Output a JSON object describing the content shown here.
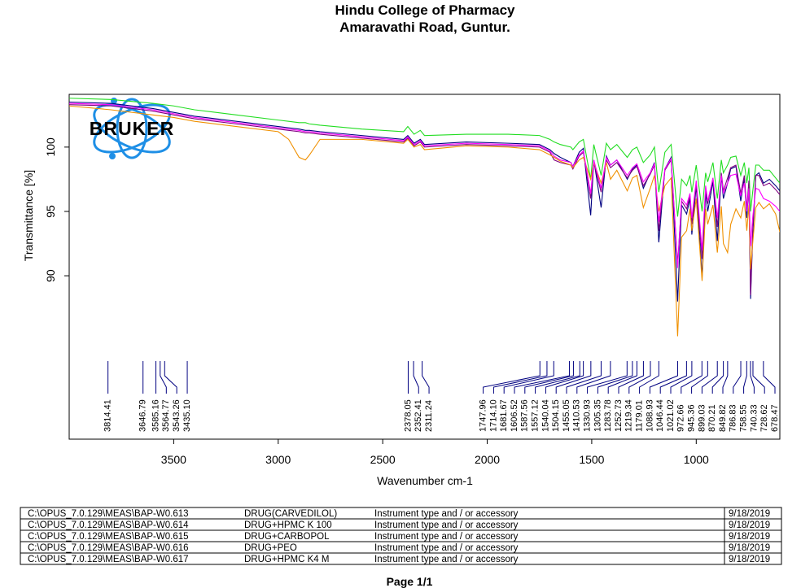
{
  "chart_data": {
    "type": "line",
    "title": "Hindu College of Pharmacy",
    "subtitle": "Amaravathi Road, Guntur.",
    "logo": "BRUKER",
    "xlabel": "Wavenumber cm-1",
    "ylabel": "Transmittance [%]",
    "footer": "Page 1/1",
    "xlim": [
      4000,
      600
    ],
    "ylim": [
      77.3,
      104.1
    ],
    "xticks": [
      3500,
      3000,
      2500,
      2000,
      1500,
      1000
    ],
    "yticks": [
      90,
      95,
      100
    ],
    "x": [
      4000,
      3800,
      3600,
      3500,
      3400,
      3200,
      3000,
      2950,
      2900,
      2870,
      2850,
      2800,
      2600,
      2400,
      2380,
      2350,
      2320,
      2300,
      2100,
      1900,
      1750,
      1700,
      1680,
      1650,
      1600,
      1590,
      1560,
      1540,
      1505,
      1490,
      1455,
      1430,
      1410,
      1380,
      1330,
      1305,
      1284,
      1253,
      1220,
      1200,
      1179,
      1150,
      1120,
      1089,
      1070,
      1046,
      1030,
      1021,
      1000,
      972,
      955,
      945,
      920,
      899,
      880,
      870,
      850,
      835,
      810,
      787,
      770,
      758,
      748,
      740,
      730,
      715,
      700,
      678,
      650,
      620,
      600
    ],
    "series": [
      {
        "name": "DRUG(CARVEDILOL)",
        "color": "#000080",
        "file": "C:\\OPUS_7.0.129\\MEAS\\BAP-W0.613",
        "accessory": "Instrument type and / or accessory",
        "date": "9/18/2019",
        "values": [
          103.5,
          103.4,
          103.0,
          102.7,
          102.4,
          102.0,
          101.6,
          101.5,
          101.4,
          101.3,
          101.3,
          101.2,
          100.9,
          100.6,
          100.9,
          100.3,
          100.6,
          100.2,
          100.4,
          100.3,
          100.2,
          99.8,
          99.5,
          99.2,
          98.8,
          98.5,
          99.6,
          99.9,
          94.7,
          99.0,
          95.3,
          99.3,
          98.6,
          99.0,
          97.5,
          98.3,
          98.6,
          96.8,
          98.0,
          98.8,
          92.6,
          98.3,
          99.2,
          88.0,
          95.5,
          94.8,
          96.0,
          93.2,
          97.0,
          89.9,
          96.5,
          95.0,
          97.3,
          92.7,
          97.8,
          96.0,
          97.2,
          98.3,
          98.5,
          95.8,
          97.6,
          94.5,
          97.2,
          88.2,
          93.0,
          97.8,
          98.0,
          97.2,
          97.5,
          97.0,
          96.6
        ]
      },
      {
        "name": "DRUG+HPMC K 100",
        "color": "#22dd22",
        "file": "C:\\OPUS_7.0.129\\MEAS\\BAP-W0.614",
        "accessory": "Instrument type and / or accessory",
        "date": "9/18/2019",
        "values": [
          103.8,
          103.7,
          103.4,
          103.2,
          102.9,
          102.5,
          102.1,
          102.0,
          101.9,
          101.9,
          101.8,
          101.7,
          101.4,
          101.2,
          101.6,
          101.0,
          101.3,
          100.9,
          101.0,
          101.0,
          100.9,
          100.6,
          100.4,
          100.2,
          100.0,
          99.8,
          100.4,
          100.6,
          97.5,
          100.2,
          97.8,
          100.3,
          99.8,
          100.2,
          99.2,
          99.8,
          100.0,
          98.8,
          99.4,
          100.0,
          96.5,
          99.6,
          100.2,
          94.6,
          97.5,
          97.0,
          97.8,
          96.5,
          98.6,
          95.0,
          98.0,
          97.3,
          98.8,
          96.0,
          99.0,
          98.0,
          98.6,
          99.2,
          99.3,
          97.8,
          98.8,
          97.2,
          98.4,
          95.0,
          96.5,
          98.6,
          98.6,
          98.2,
          98.2,
          97.6,
          97.2
        ]
      },
      {
        "name": "DRUG+CARBOPOL",
        "color": "#800080",
        "file": "C:\\OPUS_7.0.129\\MEAS\\BAP-W0.615",
        "accessory": "Instrument type and / or accessory",
        "date": "9/18/2019",
        "values": [
          103.3,
          103.2,
          102.8,
          102.5,
          102.2,
          101.8,
          101.4,
          101.3,
          101.2,
          101.1,
          101.1,
          101.0,
          100.7,
          100.4,
          100.7,
          100.1,
          100.4,
          100.0,
          100.2,
          100.1,
          100.0,
          99.6,
          99.0,
          98.8,
          98.6,
          98.3,
          99.3,
          99.6,
          96.0,
          98.8,
          96.5,
          99.0,
          98.4,
          98.8,
          97.6,
          98.2,
          98.5,
          97.0,
          97.9,
          98.6,
          93.5,
          98.2,
          99.0,
          90.9,
          95.8,
          95.2,
          96.2,
          94.0,
          97.2,
          91.3,
          96.8,
          95.6,
          97.6,
          93.8,
          98.0,
          96.6,
          97.6,
          98.4,
          98.6,
          96.4,
          97.8,
          95.2,
          97.4,
          88.5,
          93.5,
          97.8,
          97.8,
          97.0,
          97.2,
          96.7,
          96.3
        ]
      },
      {
        "name": "DRUG+PEO",
        "color": "#f09000",
        "file": "C:\\OPUS_7.0.129\\MEAS\\BAP-W0.616",
        "accessory": "Instrument type and / or accessory",
        "date": "9/18/2019",
        "values": [
          103.2,
          102.9,
          102.5,
          102.3,
          102.0,
          101.6,
          101.2,
          100.6,
          99.2,
          99.0,
          99.4,
          100.6,
          100.6,
          100.3,
          100.6,
          100.0,
          100.2,
          99.8,
          100.1,
          100.0,
          99.8,
          99.4,
          99.2,
          98.9,
          98.6,
          98.4,
          99.0,
          99.2,
          97.5,
          98.8,
          97.2,
          98.8,
          97.5,
          98.2,
          96.6,
          97.6,
          97.8,
          95.3,
          96.8,
          97.8,
          95.0,
          97.0,
          97.6,
          85.3,
          93.0,
          93.5,
          95.2,
          93.5,
          96.0,
          89.6,
          95.2,
          94.0,
          95.5,
          91.8,
          95.4,
          92.5,
          91.8,
          94.0,
          95.2,
          94.5,
          95.8,
          93.5,
          95.5,
          90.5,
          92.5,
          95.3,
          95.7,
          95.2,
          95.6,
          94.8,
          93.4
        ]
      },
      {
        "name": "DRUG+HPMC K4 M",
        "color": "#ff00ff",
        "file": "C:\\OPUS_7.0.129\\MEAS\\BAP-W0.617",
        "accessory": "Instrument type and / or accessory",
        "date": "9/18/2019",
        "values": [
          103.4,
          103.3,
          102.9,
          102.6,
          102.3,
          101.9,
          101.5,
          101.4,
          101.3,
          101.2,
          101.2,
          101.1,
          100.8,
          100.5,
          100.8,
          100.2,
          100.5,
          100.1,
          100.3,
          100.2,
          100.1,
          99.7,
          99.3,
          99.0,
          98.8,
          98.5,
          99.4,
          99.7,
          96.4,
          99.0,
          96.8,
          99.2,
          98.6,
          99.0,
          97.8,
          98.4,
          98.7,
          97.3,
          98.0,
          98.7,
          94.2,
          98.3,
          99.1,
          90.6,
          96.0,
          95.5,
          96.4,
          94.5,
          97.4,
          92.0,
          97.0,
          95.8,
          97.6,
          94.5,
          97.8,
          96.4,
          97.2,
          97.8,
          97.9,
          96.2,
          97.2,
          95.0,
          96.8,
          92.3,
          94.5,
          96.8,
          96.7,
          96.0,
          95.8,
          95.4,
          95.0
        ]
      }
    ],
    "peaks": [
      3814.41,
      3646.79,
      3585.16,
      3564.77,
      3543.26,
      {
        "value": 3435.1,
        "label": "3435.10"
      },
      2378.05,
      2352.41,
      2311.24,
      1747.96,
      {
        "value": 1714.1,
        "label": "1714.10"
      },
      1681.67,
      1606.52,
      1587.56,
      1557.12,
      1540.04,
      1504.15,
      1455.05,
      1410.53,
      1330.93,
      1305.35,
      1283.78,
      1252.73,
      1219.34,
      1179.01,
      1088.93,
      1046.44,
      1021.02,
      972.66,
      945.36,
      899.03,
      870.21,
      849.82,
      786.83,
      758.55,
      740.33,
      728.62,
      678.47
    ]
  }
}
